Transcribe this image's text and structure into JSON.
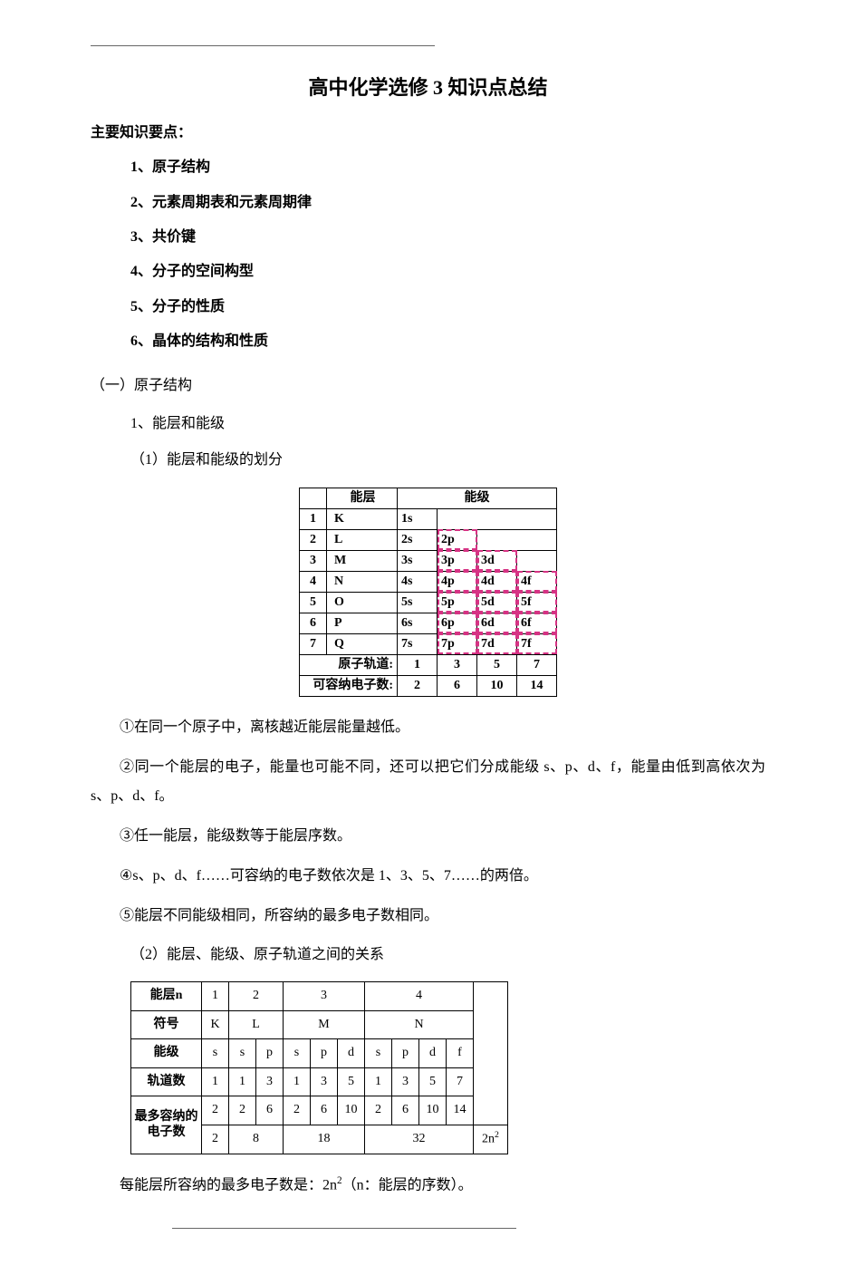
{
  "title": "高中化学选修 3 知识点总结",
  "subhead": "主要知识要点：",
  "toc": {
    "items": [
      "1、原子结构",
      "2、元素周期表和元素周期律",
      "3、共价键",
      "4、分子的空间构型",
      "5、分子的性质",
      "6、晶体的结构和性质"
    ]
  },
  "section1": {
    "heading": "（一）原子结构",
    "sub1": "1、能层和能级",
    "sub1_1": "（1）能层和能级的划分"
  },
  "table1": {
    "hdr_num": "",
    "hdr_shell": "能层",
    "hdr_level": "能级",
    "rows": [
      {
        "n": "1",
        "shell": "K",
        "cells": [
          "1s",
          "",
          "",
          ""
        ]
      },
      {
        "n": "2",
        "shell": "L",
        "cells": [
          "2s",
          "2p",
          "",
          ""
        ]
      },
      {
        "n": "3",
        "shell": "M",
        "cells": [
          "3s",
          "3p",
          "3d",
          ""
        ]
      },
      {
        "n": "4",
        "shell": "N",
        "cells": [
          "4s",
          "4p",
          "4d",
          "4f"
        ]
      },
      {
        "n": "5",
        "shell": "O",
        "cells": [
          "5s",
          "5p",
          "5d",
          "5f"
        ]
      },
      {
        "n": "6",
        "shell": "P",
        "cells": [
          "6s",
          "6p",
          "6d",
          "6f"
        ]
      },
      {
        "n": "7",
        "shell": "Q",
        "cells": [
          "7s",
          "7p",
          "7d",
          "7f"
        ]
      }
    ],
    "footer1_label": "原子轨道:",
    "footer1_vals": [
      "1",
      "3",
      "5",
      "7"
    ],
    "footer2_label": "可容纳电子数:",
    "footer2_vals": [
      "2",
      "6",
      "10",
      "14"
    ],
    "dash_color": "#d63384"
  },
  "paras": {
    "p1": "①在同一个原子中，离核越近能层能量越低。",
    "p2": "②同一个能层的电子，能量也可能不同，还可以把它们分成能级 s、p、d、f，能量由低到高依次为 s、p、d、f。",
    "p3": "③任一能层，能级数等于能层序数。",
    "p4": "④s、p、d、f……可容纳的电子数依次是 1、3、5、7……的两倍。",
    "p5": "⑤能层不同能级相同，所容纳的最多电子数相同。",
    "sub1_2": "（2）能层、能级、原子轨道之间的关系"
  },
  "table2": {
    "rowlabels": [
      "能层n",
      "符号",
      "能级",
      "轨道数",
      "最多容纳的电子数",
      ""
    ],
    "shell_n": [
      "1",
      "2",
      "3",
      "4"
    ],
    "shell_sym": [
      "K",
      "L",
      "M",
      "N"
    ],
    "levels": {
      "1": [
        "s"
      ],
      "2": [
        "s",
        "p"
      ],
      "3": [
        "s",
        "p",
        "d"
      ],
      "4": [
        "s",
        "p",
        "d",
        "f"
      ]
    },
    "orbitals": {
      "1": [
        "1"
      ],
      "2": [
        "1",
        "3"
      ],
      "3": [
        "1",
        "3",
        "5"
      ],
      "4": [
        "1",
        "3",
        "5",
        "7"
      ]
    },
    "elec_each": {
      "1": [
        "2"
      ],
      "2": [
        "2",
        "6"
      ],
      "3": [
        "2",
        "6",
        "10"
      ],
      "4": [
        "2",
        "6",
        "10",
        "14"
      ]
    },
    "elec_total": [
      "2",
      "8",
      "18",
      "32"
    ],
    "side_formula": "2n²"
  },
  "closing": "每能层所容纳的最多电子数是：2n²（n：能层的序数）。",
  "colors": {
    "text": "#000000",
    "bg": "#ffffff",
    "dashed": "#d63384",
    "hr": "#666666"
  },
  "fonts": {
    "body": "SimSun",
    "table2_label": "KaiTi",
    "size_title": 22,
    "size_body": 16,
    "size_table": 14
  }
}
